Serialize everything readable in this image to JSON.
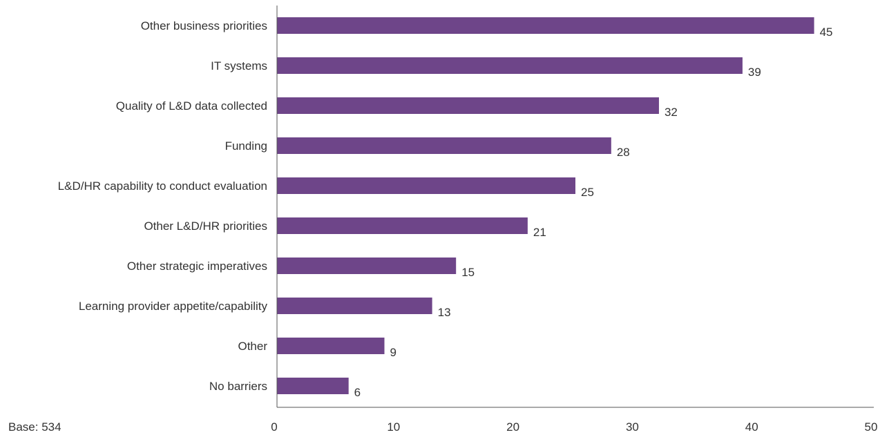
{
  "chart_data": {
    "type": "bar",
    "orientation": "horizontal",
    "categories": [
      "Other business priorities",
      "IT systems",
      "Quality of L&D data collected",
      "Funding",
      "L&D/HR capability to conduct evaluation",
      "Other L&D/HR priorities",
      "Other strategic imperatives",
      "Learning provider appetite/capability",
      "Other",
      "No barriers"
    ],
    "values": [
      45,
      39,
      32,
      28,
      25,
      21,
      15,
      13,
      9,
      6
    ],
    "xlim": [
      0,
      50
    ],
    "x_ticks": [
      0,
      10,
      20,
      30,
      40,
      50
    ],
    "grid": false,
    "bar_color": "#6e4589",
    "title": "",
    "xlabel": "",
    "ylabel": ""
  },
  "footnote": "Base: 534"
}
